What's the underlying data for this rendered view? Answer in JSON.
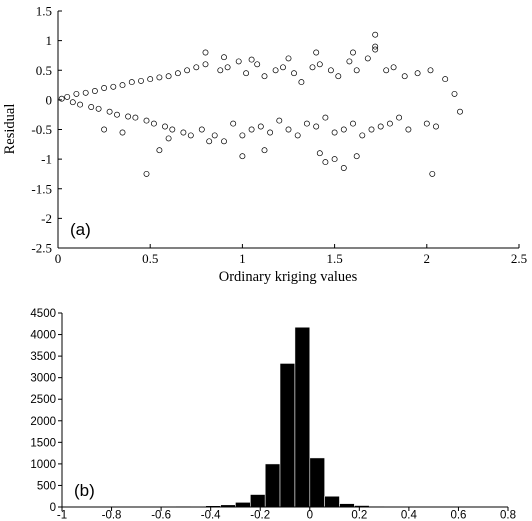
{
  "chart_data": [
    {
      "type": "scatter",
      "panel_label": "(a)",
      "xlabel": "Ordinary kriging values",
      "ylabel": "Residual",
      "xlim": [
        0,
        2.5
      ],
      "ylim": [
        -2.5,
        1.5
      ],
      "x_ticks": [
        "0",
        "0.5",
        "1",
        "1.5",
        "2",
        "2.5"
      ],
      "y_ticks": [
        "1.5",
        "1",
        "0.5",
        "0",
        "-0.5",
        "-1",
        "-1.5",
        "-2",
        "-2.5"
      ],
      "grid": false,
      "marker": "open circle",
      "points": [
        [
          0.02,
          0.02
        ],
        [
          0.05,
          0.05
        ],
        [
          0.08,
          -0.04
        ],
        [
          0.1,
          0.1
        ],
        [
          0.12,
          -0.08
        ],
        [
          0.15,
          0.12
        ],
        [
          0.18,
          -0.12
        ],
        [
          0.2,
          0.15
        ],
        [
          0.22,
          -0.15
        ],
        [
          0.25,
          0.2
        ],
        [
          0.28,
          -0.2
        ],
        [
          0.3,
          0.22
        ],
        [
          0.32,
          -0.25
        ],
        [
          0.35,
          0.25
        ],
        [
          0.38,
          -0.28
        ],
        [
          0.4,
          0.3
        ],
        [
          0.42,
          -0.3
        ],
        [
          0.45,
          0.32
        ],
        [
          0.48,
          -0.35
        ],
        [
          0.5,
          0.35
        ],
        [
          0.52,
          -0.4
        ],
        [
          0.55,
          0.38
        ],
        [
          0.58,
          -0.45
        ],
        [
          0.6,
          0.4
        ],
        [
          0.62,
          -0.5
        ],
        [
          0.65,
          0.45
        ],
        [
          0.68,
          -0.55
        ],
        [
          0.7,
          0.5
        ],
        [
          0.72,
          -0.6
        ],
        [
          0.75,
          0.55
        ],
        [
          0.78,
          -0.5
        ],
        [
          0.8,
          0.6
        ],
        [
          0.85,
          -0.6
        ],
        [
          0.88,
          0.5
        ],
        [
          0.9,
          -0.7
        ],
        [
          0.92,
          0.55
        ],
        [
          0.95,
          -0.4
        ],
        [
          0.98,
          0.65
        ],
        [
          1.0,
          -0.6
        ],
        [
          1.02,
          0.45
        ],
        [
          1.05,
          -0.5
        ],
        [
          1.08,
          0.6
        ],
        [
          1.1,
          -0.45
        ],
        [
          1.12,
          0.4
        ],
        [
          1.15,
          -0.55
        ],
        [
          1.18,
          0.5
        ],
        [
          1.2,
          -0.35
        ],
        [
          1.22,
          0.55
        ],
        [
          1.25,
          -0.5
        ],
        [
          1.28,
          0.45
        ],
        [
          1.3,
          -0.6
        ],
        [
          1.32,
          0.3
        ],
        [
          1.35,
          -0.4
        ],
        [
          1.38,
          0.55
        ],
        [
          1.4,
          -0.45
        ],
        [
          1.42,
          0.6
        ],
        [
          1.45,
          -0.3
        ],
        [
          1.48,
          0.5
        ],
        [
          1.5,
          -0.55
        ],
        [
          1.52,
          0.4
        ],
        [
          1.55,
          -0.5
        ],
        [
          1.58,
          0.65
        ],
        [
          1.6,
          -0.4
        ],
        [
          1.62,
          0.5
        ],
        [
          1.65,
          -0.6
        ],
        [
          1.68,
          0.7
        ],
        [
          1.7,
          -0.5
        ],
        [
          1.72,
          0.85
        ],
        [
          1.75,
          -0.45
        ],
        [
          1.78,
          0.5
        ],
        [
          1.8,
          -0.4
        ],
        [
          1.82,
          0.55
        ],
        [
          1.85,
          -0.3
        ],
        [
          1.88,
          0.4
        ],
        [
          1.9,
          -0.5
        ],
        [
          1.95,
          0.45
        ],
        [
          2.0,
          -0.4
        ],
        [
          2.02,
          0.5
        ],
        [
          2.05,
          -0.45
        ],
        [
          2.1,
          0.35
        ],
        [
          2.15,
          0.1
        ],
        [
          2.18,
          -0.2
        ],
        [
          1.72,
          1.1
        ],
        [
          1.72,
          0.9
        ],
        [
          0.8,
          0.8
        ],
        [
          1.4,
          0.8
        ],
        [
          1.6,
          0.8
        ],
        [
          0.48,
          -1.25
        ],
        [
          2.03,
          -1.25
        ],
        [
          1.55,
          -1.15
        ],
        [
          1.5,
          -1.0
        ],
        [
          1.42,
          -0.9
        ],
        [
          1.62,
          -0.95
        ],
        [
          1.45,
          -1.05
        ],
        [
          1.0,
          -0.95
        ],
        [
          1.12,
          -0.85
        ],
        [
          0.82,
          -0.7
        ],
        [
          0.6,
          -0.65
        ],
        [
          0.55,
          -0.85
        ],
        [
          0.35,
          -0.55
        ],
        [
          0.25,
          -0.5
        ],
        [
          0.9,
          0.72
        ],
        [
          1.05,
          0.68
        ],
        [
          1.25,
          0.7
        ]
      ]
    },
    {
      "type": "bar",
      "panel_label": "(b)",
      "xlim": [
        -1,
        0.8
      ],
      "ylim": [
        0,
        4500
      ],
      "x_ticks": [
        "-1",
        "-0.8",
        "-0.6",
        "-0.4",
        "-0.2",
        "0",
        "0.2",
        "0.4",
        "0.6",
        "0.8"
      ],
      "y_ticks": [
        "4500",
        "4000",
        "3500",
        "3000",
        "2500",
        "2000",
        "1500",
        "1000",
        "500",
        "0"
      ],
      "grid": false,
      "bin_width": 0.06,
      "bins": [
        {
          "x0": -0.96,
          "count": 2
        },
        {
          "x0": -0.9,
          "count": 3
        },
        {
          "x0": -0.84,
          "count": 5
        },
        {
          "x0": -0.78,
          "count": 4
        },
        {
          "x0": -0.72,
          "count": 6
        },
        {
          "x0": -0.66,
          "count": 8
        },
        {
          "x0": -0.6,
          "count": 10
        },
        {
          "x0": -0.54,
          "count": 14
        },
        {
          "x0": -0.48,
          "count": 18
        },
        {
          "x0": -0.42,
          "count": 30
        },
        {
          "x0": -0.36,
          "count": 50
        },
        {
          "x0": -0.3,
          "count": 110
        },
        {
          "x0": -0.24,
          "count": 290
        },
        {
          "x0": -0.18,
          "count": 1000
        },
        {
          "x0": -0.12,
          "count": 3330
        },
        {
          "x0": -0.06,
          "count": 4170
        },
        {
          "x0": 0.0,
          "count": 1140
        },
        {
          "x0": 0.06,
          "count": 250
        },
        {
          "x0": 0.12,
          "count": 80
        },
        {
          "x0": 0.18,
          "count": 35
        },
        {
          "x0": 0.24,
          "count": 15
        },
        {
          "x0": 0.3,
          "count": 8
        },
        {
          "x0": 0.36,
          "count": 5
        },
        {
          "x0": 0.42,
          "count": 3
        },
        {
          "x0": 0.48,
          "count": 2
        },
        {
          "x0": 0.54,
          "count": 2
        }
      ]
    }
  ]
}
